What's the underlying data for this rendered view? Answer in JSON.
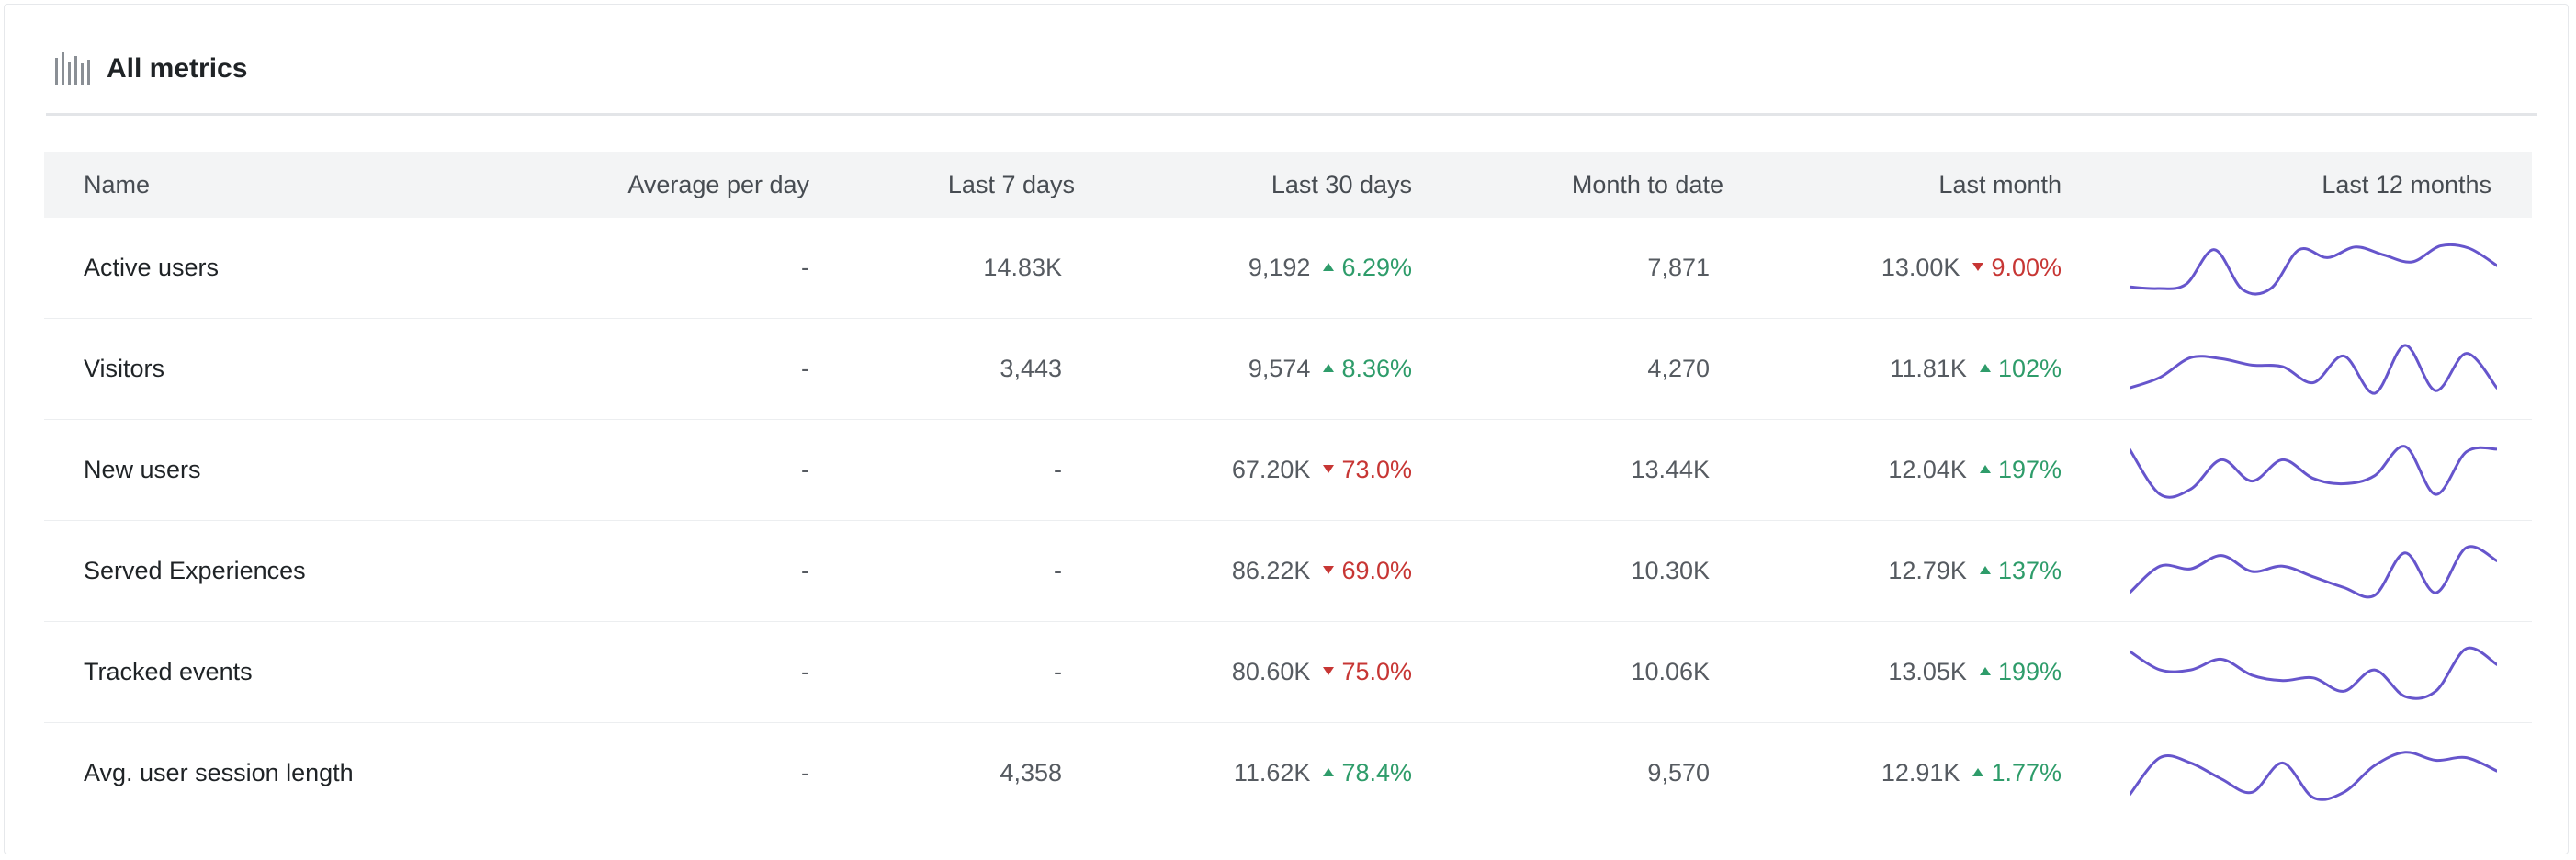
{
  "panel": {
    "title": "All metrics",
    "icon": "bar-chart-icon"
  },
  "columns": {
    "name": "Name",
    "avg_per_day": "Average per day",
    "last_7": "Last 7 days",
    "last_30": "Last 30 days",
    "mtd": "Month to date",
    "last_month": "Last month",
    "last_12": "Last 12 months"
  },
  "colors": {
    "up": "#2e9c6a",
    "down": "#c73634",
    "spark": "#6655cc"
  },
  "rows": [
    {
      "name": "Active users",
      "avg": "-",
      "last7": "14.83K",
      "last30": "9,192",
      "last30_change": "6.29%",
      "last30_dir": "up",
      "mtd": "7,871",
      "lastmonth": "13.00K",
      "lastmonth_change": "9.00%",
      "lastmonth_dir": "down",
      "spark": [
        0.15,
        0.12,
        0.2,
        0.85,
        0.1,
        0.12,
        0.85,
        0.7,
        0.9,
        0.75,
        0.62,
        0.92,
        0.88,
        0.55
      ]
    },
    {
      "name": "Visitors",
      "avg": "-",
      "last7": "3,443",
      "last30": "9,574",
      "last30_change": "8.36%",
      "last30_dir": "up",
      "mtd": "4,270",
      "lastmonth": "11.81K",
      "lastmonth_change": "102%",
      "lastmonth_dir": "up",
      "spark": [
        0.15,
        0.35,
        0.72,
        0.7,
        0.58,
        0.55,
        0.25,
        0.75,
        0.05,
        0.95,
        0.1,
        0.8,
        0.15
      ]
    },
    {
      "name": "New users",
      "avg": "-",
      "last7": "-",
      "last30": "67.20K",
      "last30_change": "73.0%",
      "last30_dir": "down",
      "mtd": "13.44K",
      "lastmonth": "12.04K",
      "lastmonth_change": "197%",
      "lastmonth_dir": "up",
      "spark": [
        0.9,
        0.05,
        0.15,
        0.7,
        0.3,
        0.7,
        0.35,
        0.25,
        0.4,
        0.95,
        0.05,
        0.85,
        0.9
      ]
    },
    {
      "name": "Served Experiences",
      "avg": "-",
      "last7": "-",
      "last30": "86.22K",
      "last30_change": "69.0%",
      "last30_dir": "down",
      "mtd": "10.30K",
      "lastmonth": "12.79K",
      "lastmonth_change": "137%",
      "lastmonth_dir": "up",
      "spark": [
        0.1,
        0.6,
        0.55,
        0.8,
        0.5,
        0.6,
        0.4,
        0.2,
        0.05,
        0.85,
        0.1,
        0.95,
        0.7
      ]
    },
    {
      "name": "Tracked events",
      "avg": "-",
      "last7": "-",
      "last30": "80.60K",
      "last30_change": "75.0%",
      "last30_dir": "down",
      "mtd": "10.06K",
      "lastmonth": "13.05K",
      "lastmonth_change": "199%",
      "lastmonth_dir": "up",
      "spark": [
        0.9,
        0.55,
        0.55,
        0.75,
        0.45,
        0.35,
        0.4,
        0.15,
        0.55,
        0.05,
        0.15,
        0.95,
        0.65
      ]
    },
    {
      "name": "Avg. user session length",
      "avg": "-",
      "last7": "4,358",
      "last30": "11.62K",
      "last30_change": "78.4%",
      "last30_dir": "up",
      "mtd": "9,570",
      "lastmonth": "12.91K",
      "lastmonth_change": "1.77%",
      "lastmonth_dir": "up",
      "spark": [
        0.1,
        0.8,
        0.7,
        0.4,
        0.15,
        0.7,
        0.05,
        0.15,
        0.65,
        0.9,
        0.75,
        0.8,
        0.55
      ]
    }
  ]
}
